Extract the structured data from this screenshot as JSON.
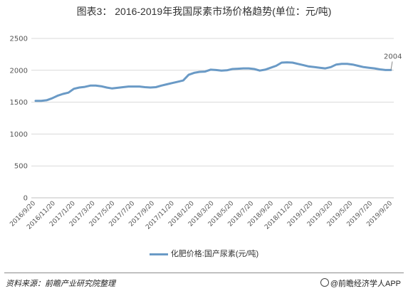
{
  "title": "图表3： 2016-2019年我国尿素市场价格趋势(单位：元/吨)",
  "source": "资料来源：前瞻产业研究院整理",
  "credit": "@前瞻经济学人APP",
  "colors": {
    "line": "#6a9ac6",
    "grid": "#d9d9d9"
  },
  "chart_data": {
    "type": "line",
    "title": "图表3： 2016-2019年我国尿素市场价格趋势(单位：元/吨)",
    "xlabel": "",
    "ylabel": "",
    "ylim": [
      0,
      2500
    ],
    "yticks": [
      0,
      500,
      1000,
      1500,
      2000,
      2500
    ],
    "grid": true,
    "legend_position": "bottom",
    "x_tick_labels": [
      "2016/9/20",
      "2016/11/20",
      "2017/1/20",
      "2017/3/20",
      "2017/5/20",
      "2017/7/20",
      "2017/9/20",
      "2017/11/20",
      "2018/1/20",
      "2018/3/20",
      "2018/5/20",
      "2018/7/20",
      "2018/9/20",
      "2018/11/20",
      "2019/1/20",
      "2019/3/20",
      "2019/5/20",
      "2019/7/20",
      "2019/9/20"
    ],
    "end_label": "2004",
    "series": [
      {
        "name": "化肥价格:国产尿素(元/吨)",
        "values": [
          1520,
          1520,
          1530,
          1560,
          1600,
          1630,
          1650,
          1710,
          1730,
          1740,
          1760,
          1760,
          1750,
          1730,
          1715,
          1725,
          1735,
          1745,
          1745,
          1745,
          1735,
          1730,
          1735,
          1760,
          1780,
          1800,
          1820,
          1840,
          1930,
          1960,
          1975,
          1980,
          2010,
          2005,
          1995,
          2000,
          2020,
          2025,
          2030,
          2030,
          2020,
          1995,
          2010,
          2040,
          2070,
          2120,
          2125,
          2120,
          2100,
          2080,
          2060,
          2050,
          2040,
          2030,
          2050,
          2090,
          2100,
          2100,
          2090,
          2070,
          2050,
          2040,
          2030,
          2015,
          2005,
          2004
        ]
      }
    ]
  }
}
